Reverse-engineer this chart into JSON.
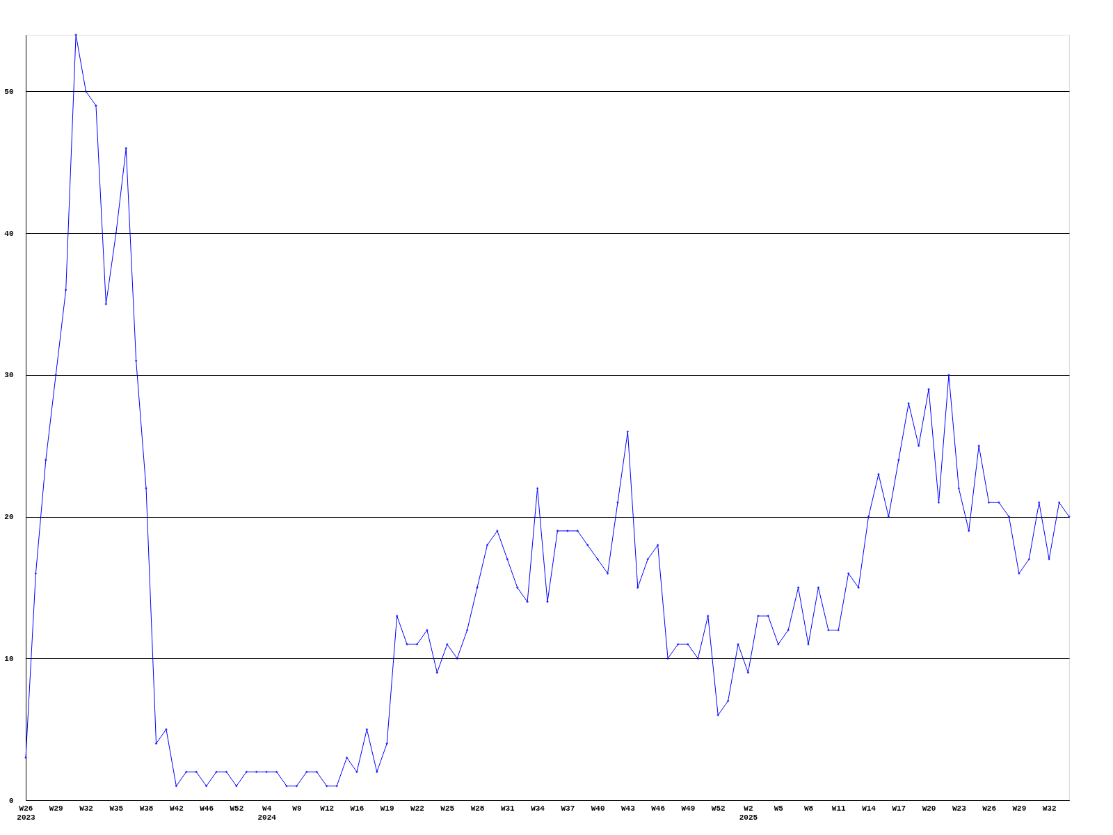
{
  "chart_data": {
    "type": "line",
    "categories": [
      "W26 2023",
      null,
      null,
      "W29",
      null,
      null,
      "W32",
      null,
      null,
      "W35",
      null,
      null,
      "W38",
      null,
      null,
      "W42",
      null,
      null,
      "W46",
      null,
      null,
      "W52",
      null,
      null,
      "W4 2024",
      null,
      null,
      "W9",
      null,
      null,
      "W12",
      null,
      null,
      "W16",
      null,
      null,
      "W19",
      null,
      null,
      "W22",
      null,
      null,
      "W25",
      null,
      null,
      "W28",
      null,
      null,
      "W31",
      null,
      null,
      "W34",
      null,
      null,
      "W37",
      null,
      null,
      "W40",
      null,
      null,
      "W43",
      null,
      null,
      "W46",
      null,
      null,
      "W49",
      null,
      null,
      "W52",
      null,
      null,
      "W2 2025",
      null,
      null,
      "W5",
      null,
      null,
      "W8",
      null,
      null,
      "W11",
      null,
      null,
      "W14",
      null,
      null,
      "W17",
      null,
      null,
      "W20",
      null,
      null,
      "W23",
      null,
      null,
      "W26",
      null,
      null,
      "W29",
      null,
      null,
      "W32",
      null,
      null
    ],
    "series": [
      {
        "color": "#0000ff",
        "values": [
          3,
          16,
          24,
          30,
          36,
          54,
          50,
          49,
          35,
          40,
          46,
          31,
          22,
          4,
          5,
          1,
          2,
          2,
          1,
          2,
          2,
          1,
          2,
          2,
          2,
          2,
          1,
          1,
          2,
          2,
          1,
          1,
          3,
          2,
          5,
          2,
          4,
          13,
          11,
          11,
          12,
          9,
          11,
          10,
          12,
          15,
          18,
          19,
          17,
          15,
          14,
          22,
          14,
          19,
          19,
          19,
          18,
          17,
          16,
          21,
          26,
          15,
          17,
          18,
          10,
          11,
          11,
          10,
          13,
          6,
          7,
          11,
          9,
          13,
          13,
          11,
          12,
          15,
          11,
          15,
          12,
          12,
          16,
          15,
          20,
          23,
          20,
          24,
          28,
          25,
          29,
          21,
          30,
          22,
          19,
          25,
          21,
          21,
          20,
          16,
          17,
          21,
          17,
          21,
          20
        ]
      }
    ],
    "ylim": [
      0,
      54
    ],
    "yticks": [
      0,
      10,
      20,
      30,
      40,
      50
    ],
    "grid": "y",
    "marker": "diamond",
    "line_style": "solid",
    "legend": false
  }
}
